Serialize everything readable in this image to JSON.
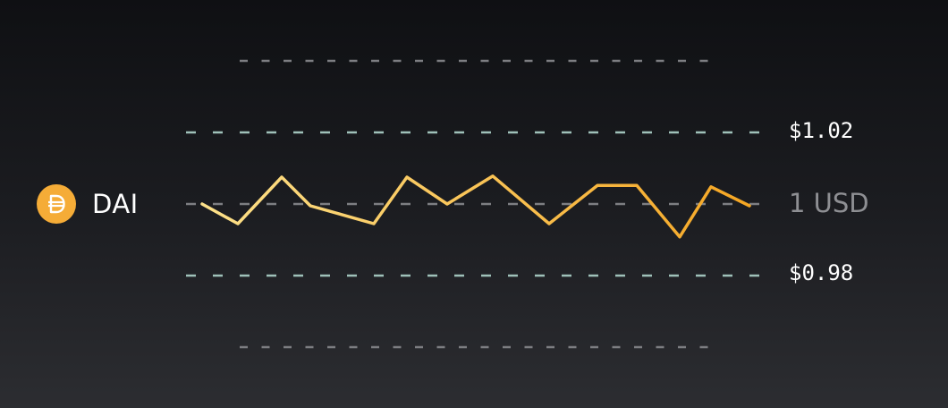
{
  "token": {
    "name": "DAI",
    "icon": "dai-coin-icon",
    "icon_color": "#f5ac37"
  },
  "chart_data": {
    "type": "line",
    "title": "",
    "xlabel": "",
    "ylabel": "",
    "ylim": [
      0.96,
      1.04
    ],
    "grid": true,
    "reference_lines": [
      {
        "value": 1.04,
        "label": "",
        "style": "dashed-gray-short"
      },
      {
        "value": 1.02,
        "label": "$1.02",
        "style": "dashed-teal"
      },
      {
        "value": 1.0,
        "label": "1 USD",
        "style": "dashed-gray"
      },
      {
        "value": 0.98,
        "label": "$0.98",
        "style": "dashed-teal"
      },
      {
        "value": 0.96,
        "label": "",
        "style": "dashed-gray-short"
      }
    ],
    "series": [
      {
        "values": [
          1.0,
          0.9945,
          1.0075,
          0.9995,
          0.9945,
          1.0075,
          1.0,
          1.0078,
          0.9945,
          1.0052,
          1.0052,
          0.9908,
          1.0048,
          0.9995
        ],
        "color_start": "#fde18a",
        "color_end": "#f5a623"
      }
    ]
  },
  "colors": {
    "grid_teal": "#9fc1b9",
    "grid_gray": "#7d7e82",
    "ref_label": "#8e8f93",
    "price_label": "#ffffff"
  }
}
